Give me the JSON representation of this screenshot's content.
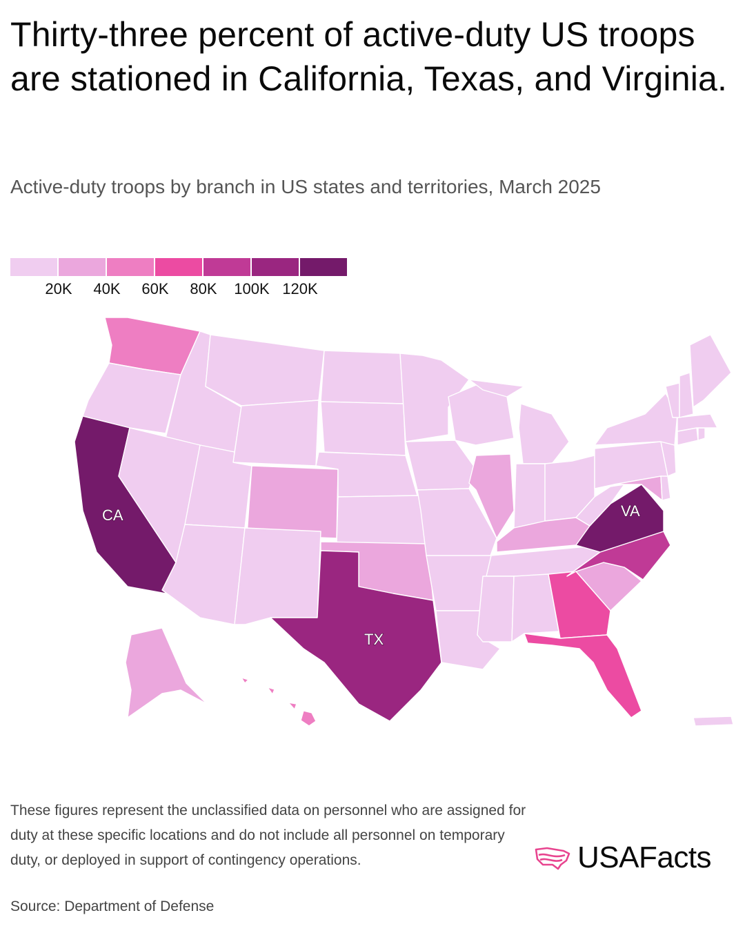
{
  "title": "Thirty-three percent of active-duty US troops are stationed in California, Texas, and Virginia.",
  "subtitle": "Active-duty troops by branch in US states and territories, March 2025",
  "legend": {
    "colors": [
      "#f0cdf0",
      "#eba7dd",
      "#ee7ec2",
      "#ec4ba2",
      "#c03a96",
      "#9a2680",
      "#741a6a"
    ],
    "labels": [
      "20K",
      "40K",
      "60K",
      "80K",
      "100K",
      "120K"
    ]
  },
  "map_labels": {
    "ca": "CA",
    "tx": "TX",
    "va": "VA"
  },
  "state_bins": {
    "CA": 6,
    "TX": 5,
    "VA": 6,
    "NC": 4,
    "GA": 3,
    "FL": 3,
    "WA": 2,
    "CO": 1,
    "OK": 1,
    "SC": 1,
    "KY": 1,
    "IL": 1,
    "AK": 1,
    "HI": 2,
    "MD": 1
  },
  "note": "These figures represent the unclassified data on personnel who are assigned for duty at these specific locations and do not include all personnel on temporary duty, or deployed in support of contingency operations.",
  "source": "Source: Department of Defense",
  "logo": {
    "text": "USAFacts",
    "icon": "usa-map-logo-icon",
    "color": "#e8448f"
  }
}
